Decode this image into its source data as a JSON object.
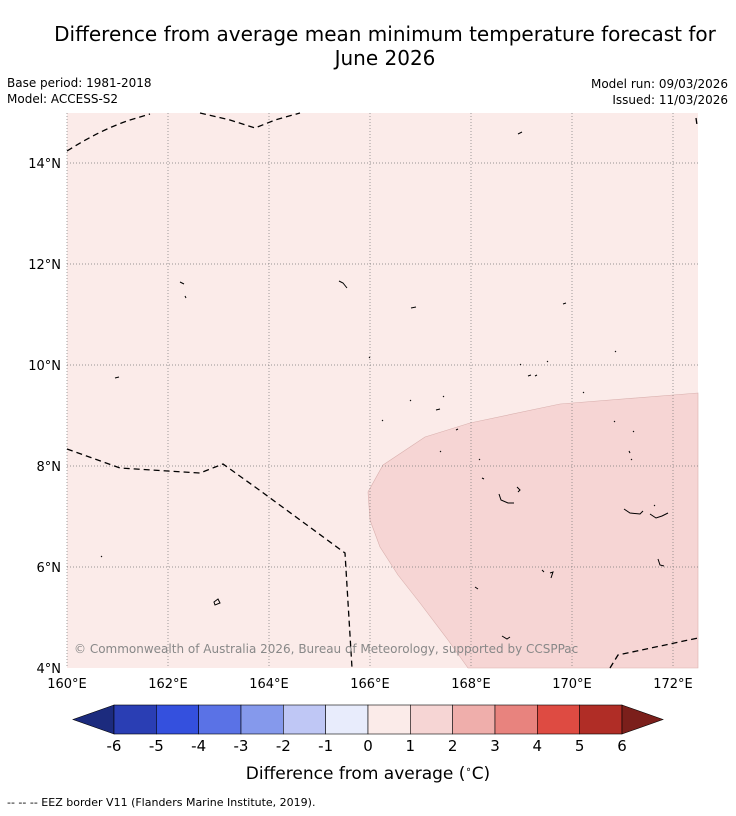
{
  "title_line1": "Difference from average mean minimum temperature forecast for",
  "title_line2": "June 2026",
  "base_period": "Base period: 1981-2018",
  "model": "Model: ACCESS-S2",
  "model_run": "Model run: 09/03/2026",
  "issued": "Issued: 11/03/2026",
  "lat_labels": [
    "14°N",
    "12°N",
    "10°N",
    "8°N",
    "6°N",
    "4°N"
  ],
  "lon_labels": [
    "160°E",
    "162°E",
    "164°E",
    "166°E",
    "168°E",
    "170°E",
    "172°E"
  ],
  "copyright": "© Commonwealth of Australia 2026, Bureau of Meteorology, supported by CCSPPac",
  "colorbar": {
    "ticks": [
      "-6",
      "-5",
      "-4",
      "-3",
      "-2",
      "-1",
      "0",
      "1",
      "2",
      "3",
      "4",
      "5",
      "6"
    ],
    "colors": [
      "#2a3eb4",
      "#3450de",
      "#5a72e6",
      "#8599ec",
      "#bfc7f5",
      "#e8ecfc",
      "#fbebe9",
      "#f6d5d4",
      "#efaeab",
      "#e8837e",
      "#de4b42",
      "#b02d26"
    ],
    "low_color": "#1c2b7e",
    "high_color": "#7b1f1b",
    "label": "Difference from average (",
    "label_degree": "∘",
    "label_unit": "C)"
  },
  "map_colors": {
    "base_fill": "#fbebe9",
    "anomaly_fill": "#f6d5d4"
  },
  "footnote": "--  --  -- EEZ border V11 (Flanders Marine Institute, 2019)."
}
